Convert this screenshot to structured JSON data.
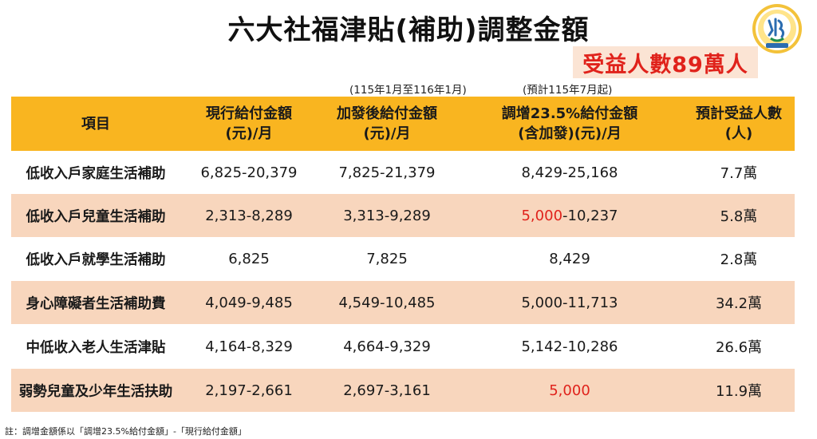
{
  "title": "六大社福津貼(補助)調整金額",
  "badge": "受益人數89萬人",
  "period_notes": [
    "(115年1月至116年1月)",
    "(預計115年7月起)"
  ],
  "colors": {
    "header": "#f9b520",
    "shade": "#f8d6bd",
    "accent": "#e0221b"
  },
  "header": {
    "item": "項目",
    "current": [
      "現行給付金額",
      "(元)/月"
    ],
    "added": [
      "加發後給付金額",
      "(元)/月"
    ],
    "raised": [
      "調增23.5%給付金額",
      "(含加發)(元)/月"
    ],
    "beneficiaries": [
      "預計受益人數",
      "(人)"
    ]
  },
  "rows": [
    {
      "item": "低收入戶家庭生活補助",
      "current": "6,825-20,379",
      "added": "7,825-21,379",
      "raised_prefix": "",
      "raised": "8,429-25,168",
      "beneficiaries": "7.7萬"
    },
    {
      "item": "低收入戶兒童生活補助",
      "current": "2,313-8,289",
      "added": "3,313-9,289",
      "raised_prefix": "5,000",
      "raised": "-10,237",
      "beneficiaries": "5.8萬"
    },
    {
      "item": "低收入戶就學生活補助",
      "current": "6,825",
      "added": "7,825",
      "raised_prefix": "",
      "raised": "8,429",
      "beneficiaries": "2.8萬"
    },
    {
      "item": "身心障礙者生活補助費",
      "current": "4,049-9,485",
      "added": "4,549-10,485",
      "raised_prefix": "",
      "raised": "5,000-11,713",
      "beneficiaries": "34.2萬"
    },
    {
      "item": "中低收入老人生活津貼",
      "current": "4,164-8,329",
      "added": "4,664-9,329",
      "raised_prefix": "",
      "raised": "5,142-10,286",
      "beneficiaries": "26.6萬"
    },
    {
      "item": "弱勢兒童及少年生活扶助",
      "current": "2,197-2,661",
      "added": "2,697-3,161",
      "raised_prefix": "5,000",
      "raised": "",
      "beneficiaries": "11.9萬"
    }
  ],
  "footnote": "註：調增金額係以「調增23.5%給付金額」-「現行給付金額」",
  "logo": {
    "icon": "ministry-of-health-and-welfare-seal",
    "text_top": "Ministry of Health and Welfare",
    "text_bottom": "衛生福利部"
  }
}
